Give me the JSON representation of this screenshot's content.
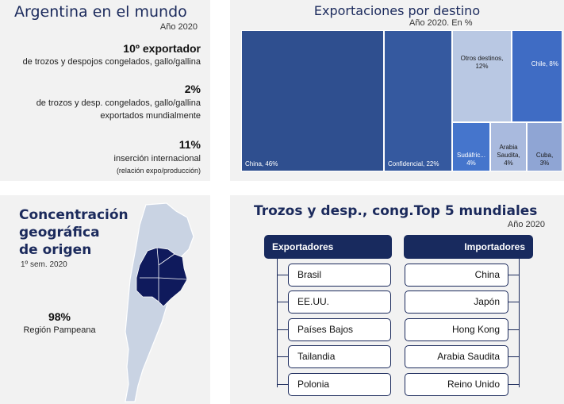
{
  "panel1": {
    "title": "Argentina en el mundo",
    "year": "Año 2020",
    "stats": [
      {
        "value": "10º exportador",
        "desc": "de trozos y despojos congelados, gallo/gallina",
        "desc2": "",
        "note": ""
      },
      {
        "value": "2%",
        "desc": "de trozos y desp. congelados, gallo/gallina",
        "desc2": "exportados mundialmente",
        "note": ""
      },
      {
        "value": "11%",
        "desc": "inserción internacional",
        "desc2": "",
        "note": "(relación expo/producción)"
      }
    ]
  },
  "panel2": {
    "title": "Exportaciones por destino",
    "subtitle": "Año 2020. En %"
  },
  "chart_data": {
    "type": "treemap",
    "unit": "%",
    "items": [
      {
        "label": "China, 46%",
        "name": "China",
        "value": 46,
        "color": "#2f4f8f"
      },
      {
        "label": "Confidencial, 22%",
        "name": "Confidencial",
        "value": 22,
        "color": "#35599f"
      },
      {
        "label": "Otros destinos,",
        "label2": "12%",
        "name": "Otros destinos",
        "value": 12,
        "color": "#b9c8e3"
      },
      {
        "label": "Chile, 8%",
        "name": "Chile",
        "value": 8,
        "color": "#3f6cc4"
      },
      {
        "label": "Sudáfric...",
        "label2": "4%",
        "name": "Sudáfrica",
        "value": 4,
        "color": "#4575cc"
      },
      {
        "label": "Arabia",
        "label2": "Saudita,",
        "label3": "4%",
        "name": "Arabia Saudita",
        "value": 4,
        "color": "#a9bade"
      },
      {
        "label": "Cuba,",
        "label2": "3%",
        "name": "Cuba",
        "value": 3,
        "color": "#8fa5d4"
      }
    ]
  },
  "panel3": {
    "title_lines": [
      "Concentración",
      "geográfica",
      "de origen"
    ],
    "period": "1º sem. 2020",
    "value": "98%",
    "region": "Región Pampeana",
    "map_colors": {
      "land": "#c9d3e3",
      "highlight": "#0f1a5c"
    }
  },
  "panel4": {
    "title": "Trozos y desp., cong.Top 5 mundiales",
    "year": "Año 2020",
    "exporters_label": "Exportadores",
    "importers_label": "Importadores",
    "exporters": [
      "Brasil",
      "EE.UU.",
      "Países Bajos",
      "Tailandia",
      "Polonia"
    ],
    "importers": [
      "China",
      "Japón",
      "Hong Kong",
      "Arabia Saudita",
      "Reino Unido"
    ]
  }
}
